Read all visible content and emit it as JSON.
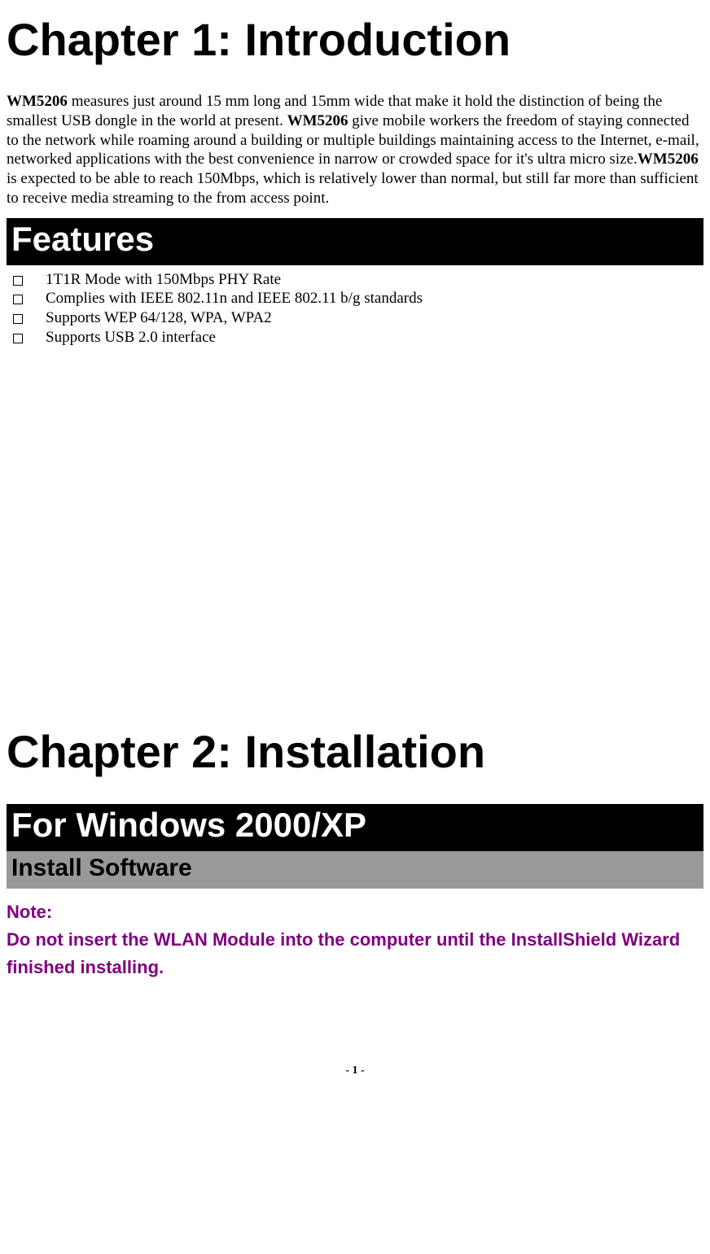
{
  "chapter1": {
    "title": "Chapter 1: Introduction",
    "intro_part1": "WM5206",
    "intro_part2": " measures just around 15 mm long and 15mm wide that make it hold the distinction of being the smallest USB dongle in the world at present. ",
    "intro_part3": "WM5206",
    "intro_part4": " give mobile workers the freedom of staying connected to the network while roaming around a building or multiple buildings maintaining access to the Internet, e-mail, networked applications with the best convenience in narrow or crowded space for it's ultra micro size.",
    "intro_part5": "WM5206",
    "intro_part6": " is expected to be able to reach 150Mbps, which is relatively lower than normal, but still far more than sufficient to receive media streaming to the from access point."
  },
  "features": {
    "heading": "Features",
    "items": [
      "1T1R Mode with 150Mbps PHY Rate",
      "Complies with IEEE 802.11n and IEEE 802.11 b/g standards",
      "Supports WEP 64/128, WPA, WPA2",
      "Supports USB 2.0 interface"
    ]
  },
  "chapter2": {
    "title": "Chapter 2: Installation",
    "section_heading": "For Windows 2000/XP",
    "sub_heading": "Install Software",
    "note_label": "Note:",
    "note_text": "Do not insert the WLAN Module into the computer until the InstallShield Wizard finished installing."
  },
  "page_number": "- 1 -",
  "colors": {
    "background": "#ffffff",
    "text": "#000000",
    "section_bg": "#000000",
    "section_fg": "#ffffff",
    "subheading_bg": "#999999",
    "note_color": "#800080"
  },
  "typography": {
    "chapter_title_size": 56,
    "section_heading_size": 42,
    "sub_heading_size": 30,
    "body_size": 19,
    "note_size": 22,
    "page_number_size": 14,
    "body_font": "Times New Roman",
    "heading_font": "Arial"
  }
}
